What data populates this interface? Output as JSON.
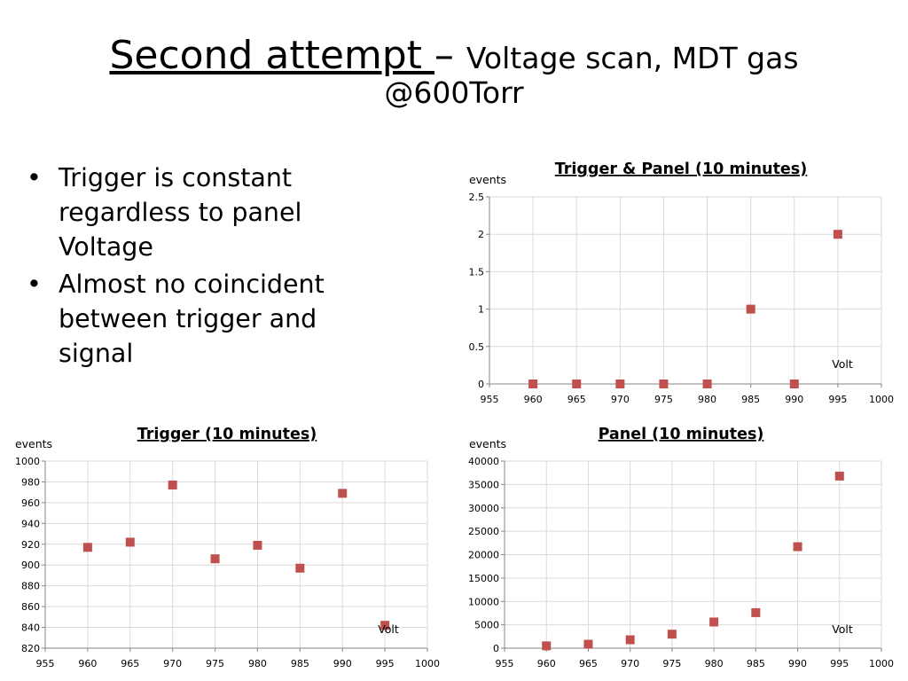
{
  "slide": {
    "title_main": "Second attempt ",
    "title_dash": "– ",
    "title_sub": "Voltage scan, MDT gas @600Torr",
    "bullets": [
      "Trigger is constant regardless to panel Voltage",
      "Almost no coincident between trigger and signal"
    ]
  },
  "colors": {
    "marker": "#c0504d",
    "grid": "#d9d9d9",
    "axis": "#868686"
  },
  "chart_data": [
    {
      "id": "coincidence",
      "type": "scatter",
      "title": "Trigger  & Panel (10 minutes)",
      "ylabel": "events",
      "xlabel": "Volt",
      "xlim": [
        955,
        1000
      ],
      "ylim": [
        0,
        2.5
      ],
      "xticks": [
        955,
        960,
        965,
        970,
        975,
        980,
        985,
        990,
        995,
        1000
      ],
      "yticks": [
        0,
        0.5,
        1,
        1.5,
        2,
        2.5
      ],
      "grid": true,
      "x": [
        960,
        965,
        970,
        975,
        980,
        985,
        990,
        995
      ],
      "y": [
        0,
        0,
        0,
        0,
        0,
        1,
        0,
        2
      ]
    },
    {
      "id": "trigger",
      "type": "scatter",
      "title": "Trigger (10 minutes)",
      "ylabel": "events",
      "xlabel": "Volt",
      "xlim": [
        955,
        1000
      ],
      "ylim": [
        820,
        1000
      ],
      "xticks": [
        955,
        960,
        965,
        970,
        975,
        980,
        985,
        990,
        995,
        1000
      ],
      "yticks": [
        820,
        840,
        860,
        880,
        900,
        920,
        940,
        960,
        980,
        1000
      ],
      "grid": true,
      "x": [
        960,
        965,
        970,
        975,
        980,
        985,
        990,
        995
      ],
      "y": [
        917,
        922,
        977,
        906,
        919,
        897,
        969,
        842
      ]
    },
    {
      "id": "panel",
      "type": "scatter",
      "title": "Panel (10 minutes)",
      "ylabel": "events",
      "xlabel": "Volt",
      "xlim": [
        955,
        1000
      ],
      "ylim": [
        0,
        40000
      ],
      "xticks": [
        955,
        960,
        965,
        970,
        975,
        980,
        985,
        990,
        995,
        1000
      ],
      "yticks": [
        0,
        5000,
        10000,
        15000,
        20000,
        25000,
        30000,
        35000,
        40000
      ],
      "grid": true,
      "x": [
        960,
        965,
        970,
        975,
        980,
        985,
        990,
        995
      ],
      "y": [
        500,
        850,
        1800,
        3000,
        5600,
        7600,
        21700,
        36800
      ]
    }
  ]
}
